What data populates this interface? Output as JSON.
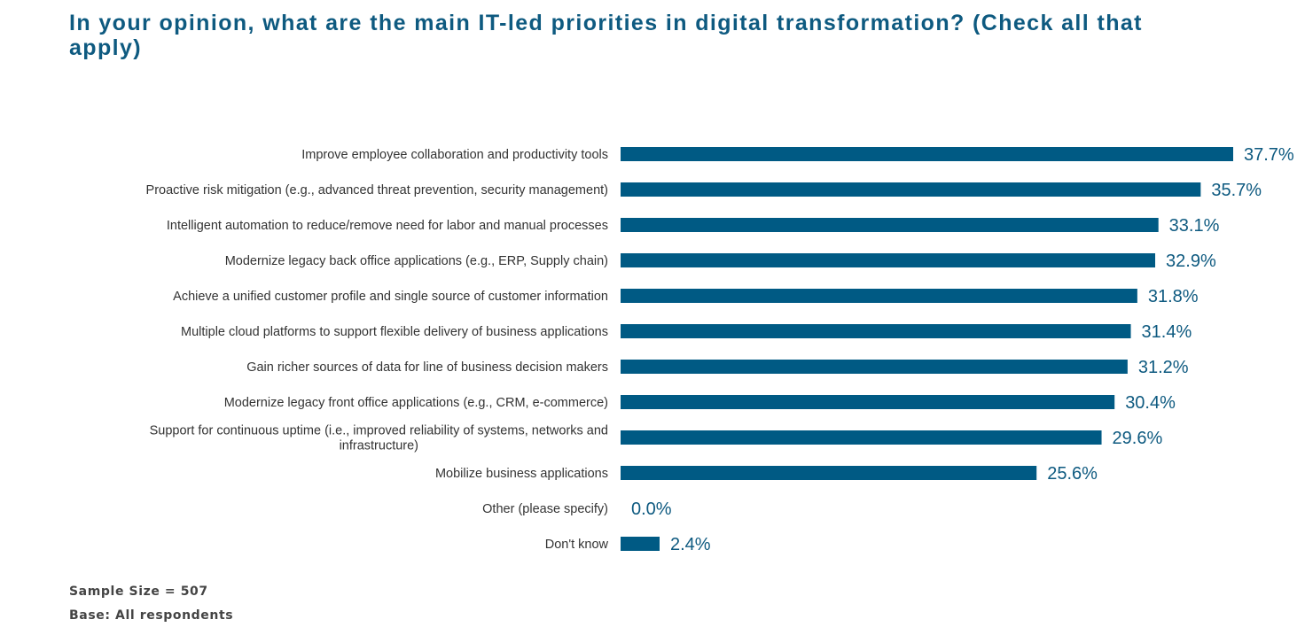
{
  "chart_data": {
    "type": "bar",
    "orientation": "horizontal",
    "title": "In your opinion, what are the main IT-led priorities in digital transformation? (Check all that apply)",
    "xlabel": "",
    "ylabel": "",
    "xlim": [
      0,
      40
    ],
    "grid": false,
    "legend": "none",
    "bar_color": "#005a84",
    "label_color": "#0e5a80",
    "categories": [
      "Improve employee collaboration and productivity tools",
      "Proactive risk mitigation (e.g., advanced threat prevention, security management)",
      "Intelligent automation to reduce/remove need for labor and manual processes",
      "Modernize legacy back office applications (e.g., ERP, Supply chain)",
      "Achieve a unified customer profile and single source of customer information",
      "Multiple cloud platforms to support flexible delivery of business applications",
      "Gain richer sources of data for line of business decision makers",
      "Modernize legacy front office applications (e.g., CRM, e-commerce)",
      "Support for continuous uptime (i.e., improved reliability of systems, networks and infrastructure)",
      "Mobilize business applications",
      "Other (please specify)",
      "Don't know"
    ],
    "category_lines": [
      [
        "Improve employee collaboration and productivity tools"
      ],
      [
        "Proactive risk mitigation (e.g., advanced threat prevention, security management)"
      ],
      [
        "Intelligent automation to reduce/remove need for labor and manual processes"
      ],
      [
        "Modernize legacy back office applications (e.g., ERP, Supply chain)"
      ],
      [
        "Achieve a unified customer profile and single source of customer information"
      ],
      [
        "Multiple cloud platforms to support flexible delivery of business applications"
      ],
      [
        "Gain richer sources of data for line of business decision makers"
      ],
      [
        "Modernize legacy front office applications (e.g., CRM, e-commerce)"
      ],
      [
        "Support for continuous uptime (i.e., improved reliability of systems, networks and",
        "infrastructure)"
      ],
      [
        "Mobilize business applications"
      ],
      [
        "Other (please specify)"
      ],
      [
        "Don't know"
      ]
    ],
    "values": [
      37.7,
      35.7,
      33.1,
      32.9,
      31.8,
      31.4,
      31.2,
      30.4,
      29.6,
      25.6,
      0.0,
      2.4
    ],
    "value_labels": [
      "37.7%",
      "35.7%",
      "33.1%",
      "32.9%",
      "31.8%",
      "31.4%",
      "31.2%",
      "30.4%",
      "29.6%",
      "25.6%",
      "0.0%",
      "2.4%"
    ]
  },
  "footnotes": {
    "sample_size": "Sample Size = 507",
    "base": "Base: All respondents"
  }
}
